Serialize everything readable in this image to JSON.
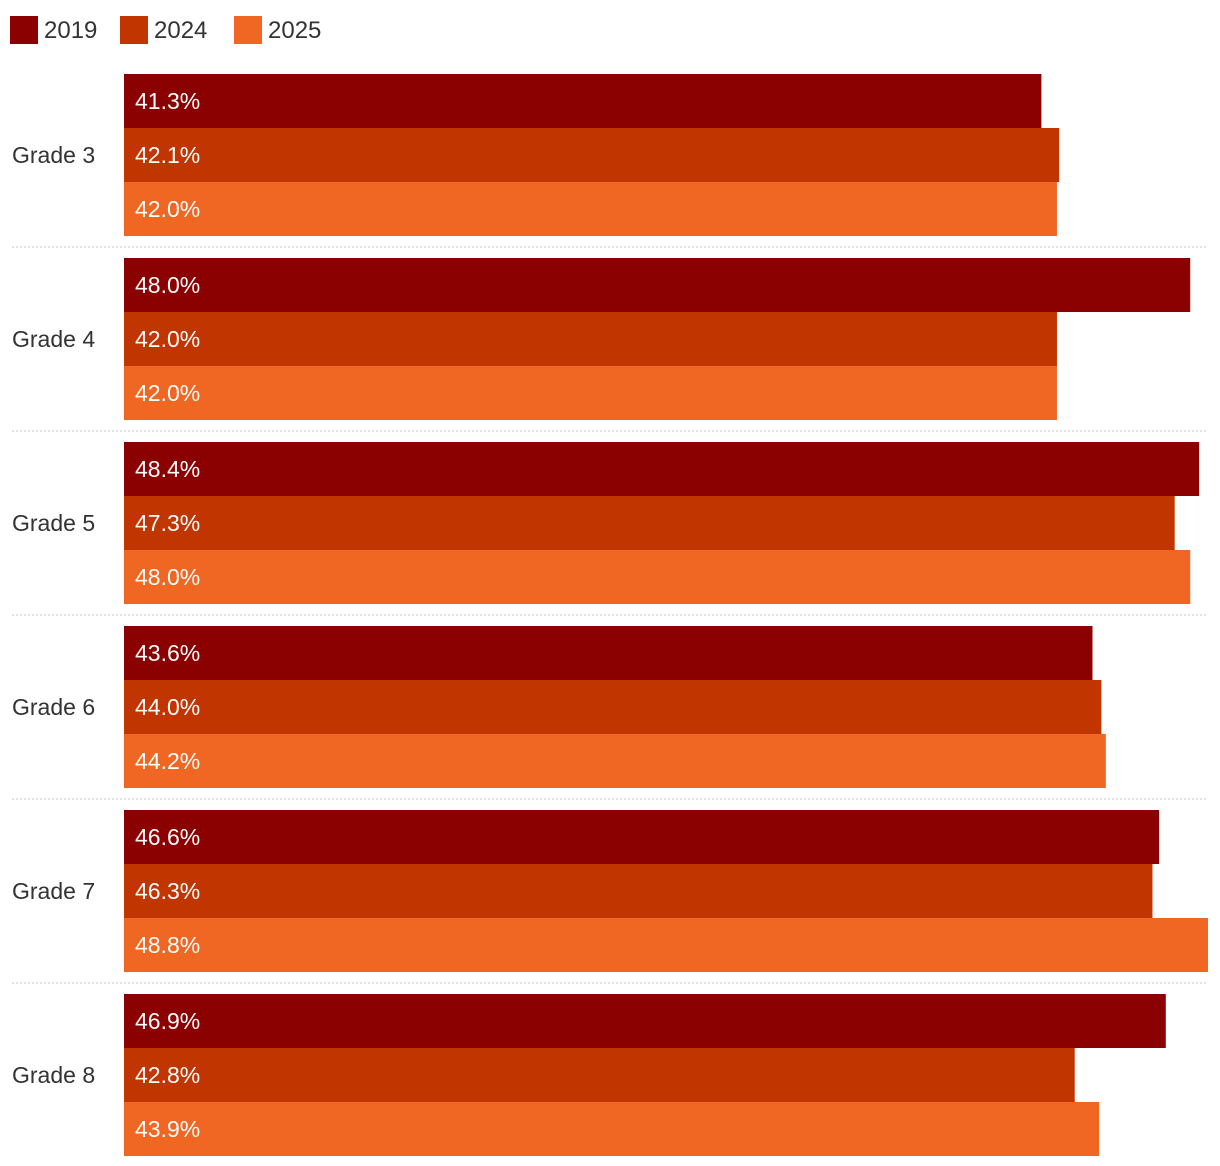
{
  "colors": {
    "2019": "#8b0000",
    "2024": "#c03500",
    "2025": "#f06623"
  },
  "chart_data": {
    "type": "bar",
    "orientation": "horizontal",
    "categories": [
      "Grade 3",
      "Grade 4",
      "Grade 5",
      "Grade 6",
      "Grade 7",
      "Grade 8"
    ],
    "series": [
      {
        "name": "2019",
        "values": [
          41.3,
          48.0,
          48.4,
          43.6,
          46.6,
          46.9
        ],
        "labels": [
          "41.3%",
          "48.0%",
          "48.4%",
          "43.6%",
          "46.6%",
          "46.9%"
        ]
      },
      {
        "name": "2024",
        "values": [
          42.1,
          42.0,
          47.3,
          44.0,
          46.3,
          42.8
        ],
        "labels": [
          "42.1%",
          "42.0%",
          "47.3%",
          "44.0%",
          "46.3%",
          "42.8%"
        ]
      },
      {
        "name": "2025",
        "values": [
          42.0,
          42.0,
          48.0,
          44.2,
          48.8,
          43.9
        ],
        "labels": [
          "42.0%",
          "42.0%",
          "48.0%",
          "44.2%",
          "48.8%",
          "43.9%"
        ]
      }
    ],
    "xlim": [
      0,
      48.8
    ],
    "legend_position": "top-left",
    "grid": false,
    "title": "",
    "xlabel": "",
    "ylabel": ""
  }
}
